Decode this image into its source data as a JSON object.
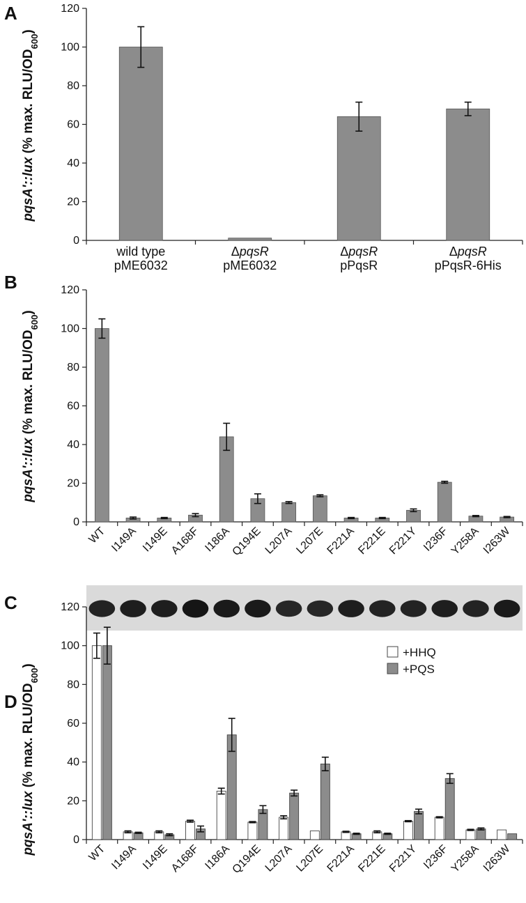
{
  "colors": {
    "bar_gray": "#8c8c8c",
    "bar_white": "#ffffff",
    "axis": "#222222",
    "error": "#111111"
  },
  "ylabel": {
    "italic": "pqsA'::lux",
    "normal": " (% max. RLU/OD",
    "sub": "600",
    "close": ")"
  },
  "chart_data": [
    {
      "panel": "A",
      "type": "bar",
      "categories": [
        {
          "line1": "wild type",
          "line2": "pME6032"
        },
        {
          "line1_prefix": "Δ",
          "line1_italic": "pqsR",
          "line2": "pME6032"
        },
        {
          "line1_prefix": "Δ",
          "line1_italic": "pqsR",
          "line2": "pPqsR"
        },
        {
          "line1_prefix": "Δ",
          "line1_italic": "pqsR",
          "line2": "pPqsR-6His"
        }
      ],
      "series": [
        {
          "values": [
            100,
            1.2,
            64,
            68
          ],
          "errors": [
            10.5,
            0,
            7.5,
            3.5
          ],
          "color": "#8c8c8c"
        }
      ],
      "ylim": [
        0,
        120
      ],
      "yticks": [
        "0",
        "20",
        "40",
        "60",
        "80",
        "100",
        "120"
      ]
    },
    {
      "panel": "B",
      "type": "bar",
      "categories": [
        "WT",
        "I149A",
        "I149E",
        "A168F",
        "I186A",
        "Q194E",
        "L207A",
        "L207E",
        "F221A",
        "F221E",
        "F221Y",
        "I236F",
        "Y258A",
        "I263W"
      ],
      "series": [
        {
          "values": [
            100,
            2,
            2,
            3.5,
            44,
            12,
            10,
            13.5,
            2,
            2,
            6,
            20.5,
            3,
            2.5
          ],
          "errors": [
            5,
            0.5,
            0.3,
            0.8,
            7,
            2.5,
            0.5,
            0.5,
            0.3,
            0.3,
            0.7,
            0.5,
            0.3,
            0.3
          ],
          "color": "#8c8c8c"
        }
      ],
      "ylim": [
        0,
        120
      ],
      "yticks": [
        "0",
        "20",
        "40",
        "60",
        "80",
        "100",
        "120"
      ]
    },
    {
      "panel": "C",
      "type": "blot",
      "lanes": 14,
      "band_intensity": [
        0.85,
        0.9,
        0.9,
        1.0,
        0.95,
        0.95,
        0.8,
        0.8,
        0.9,
        0.85,
        0.85,
        0.9,
        0.85,
        0.95
      ]
    },
    {
      "panel": "D",
      "type": "bar",
      "categories": [
        "WT",
        "I149A",
        "I149E",
        "A168F",
        "I186A",
        "Q194E",
        "L207A",
        "L207E",
        "F221A",
        "F221E",
        "F221Y",
        "I236F",
        "Y258A",
        "I263W"
      ],
      "series": [
        {
          "name": "+HHQ",
          "color": "#ffffff",
          "values": [
            100,
            4,
            4,
            9.5,
            25,
            9,
            11.5,
            4.5,
            4,
            4,
            9.5,
            11.5,
            5,
            5
          ],
          "errors": [
            6.5,
            0.5,
            0.5,
            0.5,
            1.5,
            0.3,
            0.8,
            0,
            0.3,
            0.5,
            0.3,
            0.3,
            0.3,
            0
          ]
        },
        {
          "name": "+PQS",
          "color": "#8c8c8c",
          "values": [
            100,
            3.5,
            2.5,
            5.5,
            54,
            15.5,
            24,
            39,
            3,
            3,
            14.5,
            31.5,
            5.5,
            3
          ],
          "errors": [
            9.5,
            0.3,
            0.5,
            1.5,
            8.5,
            2,
            1.5,
            3.5,
            0.3,
            0.3,
            1.2,
            2.5,
            0.5,
            0
          ]
        }
      ],
      "ylim": [
        0,
        120
      ],
      "yticks": [
        "0",
        "20",
        "40",
        "60",
        "80",
        "100",
        "120"
      ],
      "legend_placement": "top-right"
    }
  ]
}
